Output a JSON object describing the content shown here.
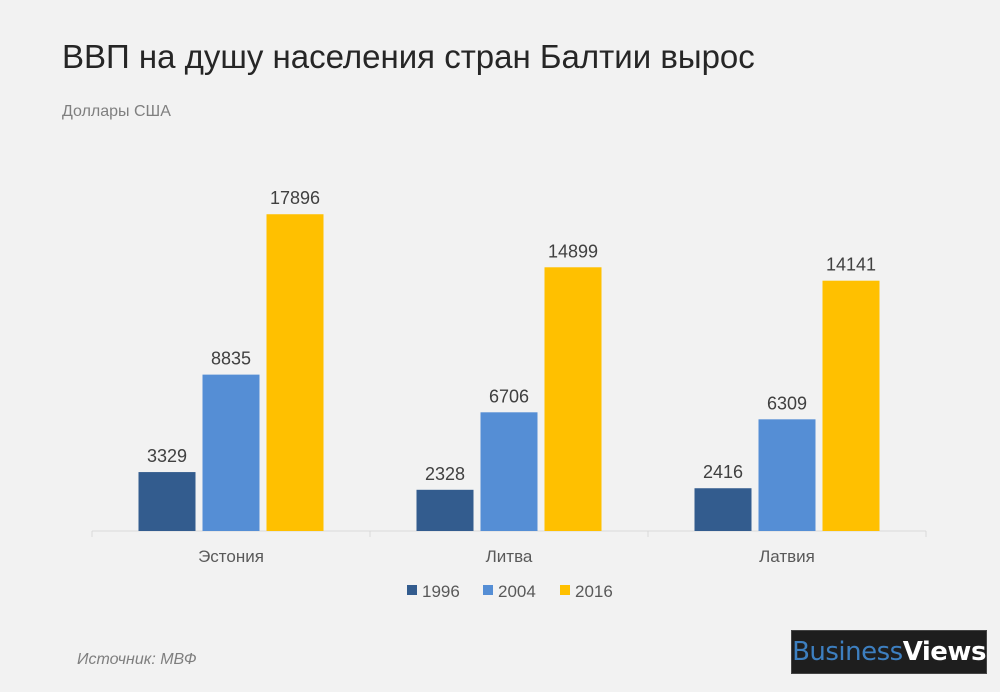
{
  "chart_data": {
    "type": "bar",
    "title": "ВВП на душу населения стран Балтии вырос",
    "subtitle": "Доллары США",
    "categories": [
      "Эстония",
      "Литва",
      "Латвия"
    ],
    "series": [
      {
        "name": "1996",
        "color": "#335c8e",
        "values": [
          3329,
          2328,
          2416
        ]
      },
      {
        "name": "2004",
        "color": "#558ed5",
        "values": [
          8835,
          6706,
          6309
        ]
      },
      {
        "name": "2016",
        "color": "#ffc000",
        "values": [
          17896,
          14899,
          14141
        ]
      }
    ],
    "ylim": [
      0,
      20000
    ],
    "grid": false,
    "legend": "bottom",
    "data_labels": true
  },
  "source": "Источник: МВФ",
  "logo": {
    "part1": "Business",
    "part2": "Views"
  }
}
